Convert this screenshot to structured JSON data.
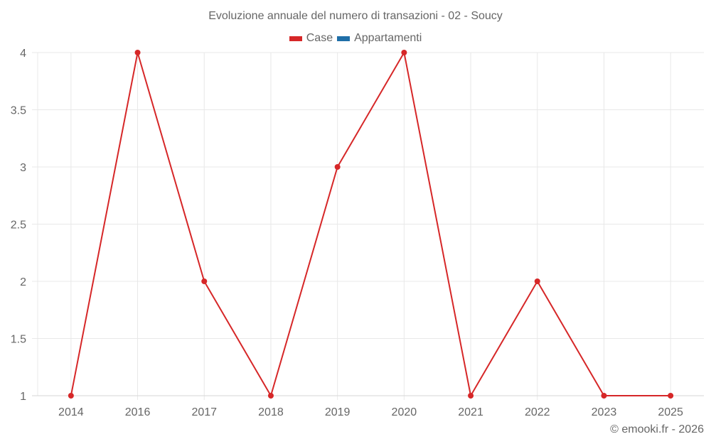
{
  "chart_data": {
    "type": "line",
    "title": "Evoluzione annuale del numero di transazioni - 02 - Soucy",
    "xlabel": "",
    "ylabel": "",
    "categories": [
      "2014",
      "2016",
      "2017",
      "2018",
      "2019",
      "2020",
      "2021",
      "2022",
      "2023",
      "2025"
    ],
    "series": [
      {
        "name": "Case",
        "color": "#d62728",
        "values": [
          1,
          4,
          2,
          1,
          3,
          4,
          1,
          2,
          1,
          1
        ]
      },
      {
        "name": "Appartamenti",
        "color": "#1f6fa8",
        "values": []
      }
    ],
    "yticks": [
      "4",
      "3.5",
      "3",
      "2.5",
      "2",
      "1.5",
      "1"
    ],
    "ylim": [
      1,
      4
    ],
    "grid": true,
    "legend_position": "top"
  },
  "title": "Evoluzione annuale del numero di transazioni - 02 - Soucy",
  "legend": [
    {
      "label": "Case",
      "color": "#d62728"
    },
    {
      "label": "Appartamenti",
      "color": "#1f6fa8"
    }
  ],
  "credit": "© emooki.fr - 2026"
}
